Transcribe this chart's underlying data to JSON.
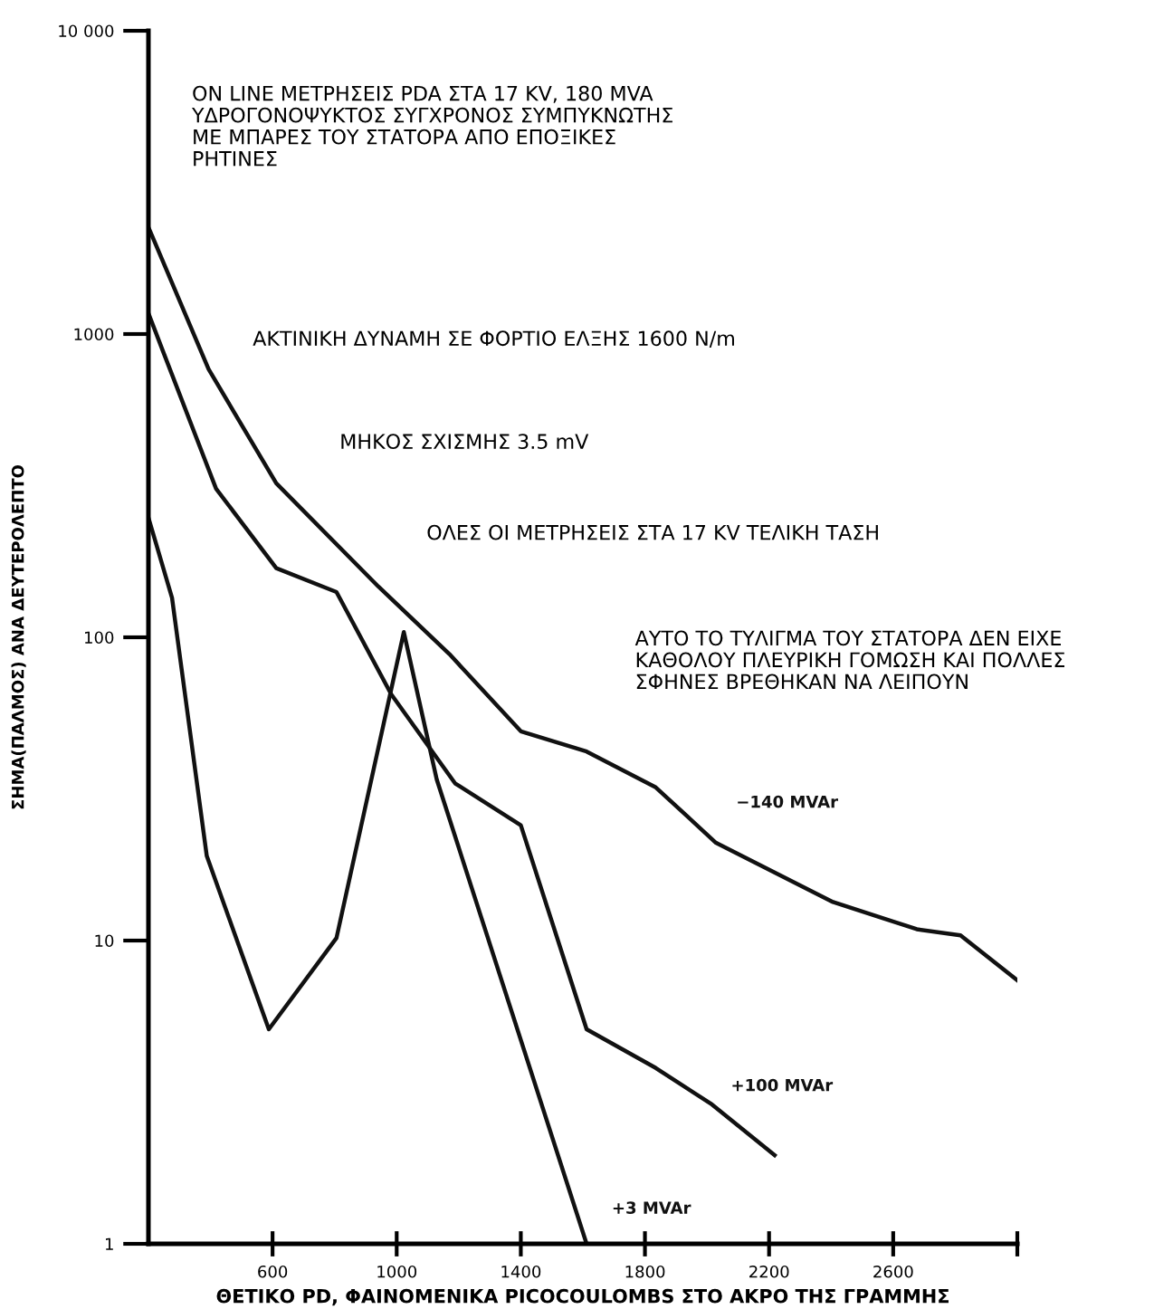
{
  "chart_data": {
    "type": "line",
    "xlabel": "ΘΕΤΙΚΟ PD, ΦΑΙΝΟΜΕΝΙΚΑ PICOCOULOMBS ΣΤΟ ΑΚΡΟ ΤΗΣ ΓΡΑΜΜΗΣ",
    "ylabel": "ΣΗΜΑ(ΠΑΛΜΟΣ) ΑΝΑ ΔΕΥΤΕΡΟΛΕΠΤΟ",
    "log": "y",
    "xlim": [
      200,
      3000
    ],
    "xticks": [
      600,
      1000,
      1400,
      1800,
      2200,
      2600,
      {
        "value": 3000,
        "label": null
      }
    ],
    "ylim": [
      1,
      10000
    ],
    "yticks": [
      1,
      10,
      100,
      1000,
      {
        "value": 10000,
        "label": "10 000"
      }
    ],
    "grid": false,
    "legend": false,
    "marker": "none",
    "line_style": "solid",
    "series": [
      {
        "name": "−140 MVAr",
        "color": "#111111",
        "x": [
          200,
          394,
          612,
          941,
          1170,
          1400,
          1612,
          1835,
          2029,
          2406,
          2676,
          2817,
          3000
        ],
        "values": [
          2250,
          765,
          322,
          147,
          88,
          49,
          42,
          32,
          21,
          13.4,
          10.9,
          10.4,
          7.4
        ]
      },
      {
        "name": "+100 MVAr",
        "color": "#111111",
        "x": [
          200,
          247,
          418,
          612,
          806,
          982,
          1188,
          1400,
          1612,
          1835,
          2012,
          2218
        ],
        "values": [
          1170,
          877,
          309,
          169,
          141,
          65,
          33,
          24,
          5.1,
          3.8,
          2.9,
          1.96
        ]
      },
      {
        "name": "+3 MVAr",
        "color": "#111111",
        "x": [
          200,
          276,
          388,
          588,
          806,
          1023,
          1129,
          1612
        ],
        "values": [
          248,
          135,
          19,
          5.1,
          10.2,
          104,
          34,
          1
        ]
      }
    ],
    "annotations": [
      "ON LINE ΜΕΤΡΗΣΕΙΣ PDA ΣΤΑ 17 KV, 180 MVA\nΥΔΡΟΓΟΝΟΨΥΚΤΟΣ ΣΥΓΧΡΟΝΟΣ ΣΥΜΠΥΚΝΩΤΗΣ\nΜΕ ΜΠΑΡΕΣ ΤΟΥ ΣΤΑΤΟΡΑ ΑΠΟ ΕΠΟΞΙΚΕΣ\nΡΗΤΙΝΕΣ",
      "ΑΚΤΙΝΙΚΗ ΔΥΝΑΜΗ ΣΕ ΦΟΡΤΙΟ ΕΛΞΗΣ 1600 N/m",
      "ΜΗΚΟΣ ΣΧΙΣΜΗΣ 3.5 mV",
      "ΟΛΕΣ ΟΙ ΜΕΤΡΗΣΕΙΣ ΣΤΑ 17 KV ΤΕΛΙΚΗ ΤΑΣΗ",
      "ΑΥΤΟ ΤΟ ΤΥΛΙΓΜΑ ΤΟΥ ΣΤΑΤΟΡΑ ΔΕΝ ΕΙΧΕ\nΚΑΘΟΛΟΥ ΠΛΕΥΡΙΚΗ ΓΟΜΩΣΗ ΚΑΙ ΠΟΛΛΕΣ\nΣΦΗΝΕΣ ΒΡΕΘΗΚΑΝ ΝΑ ΛΕΙΠΟΥΝ"
    ]
  }
}
